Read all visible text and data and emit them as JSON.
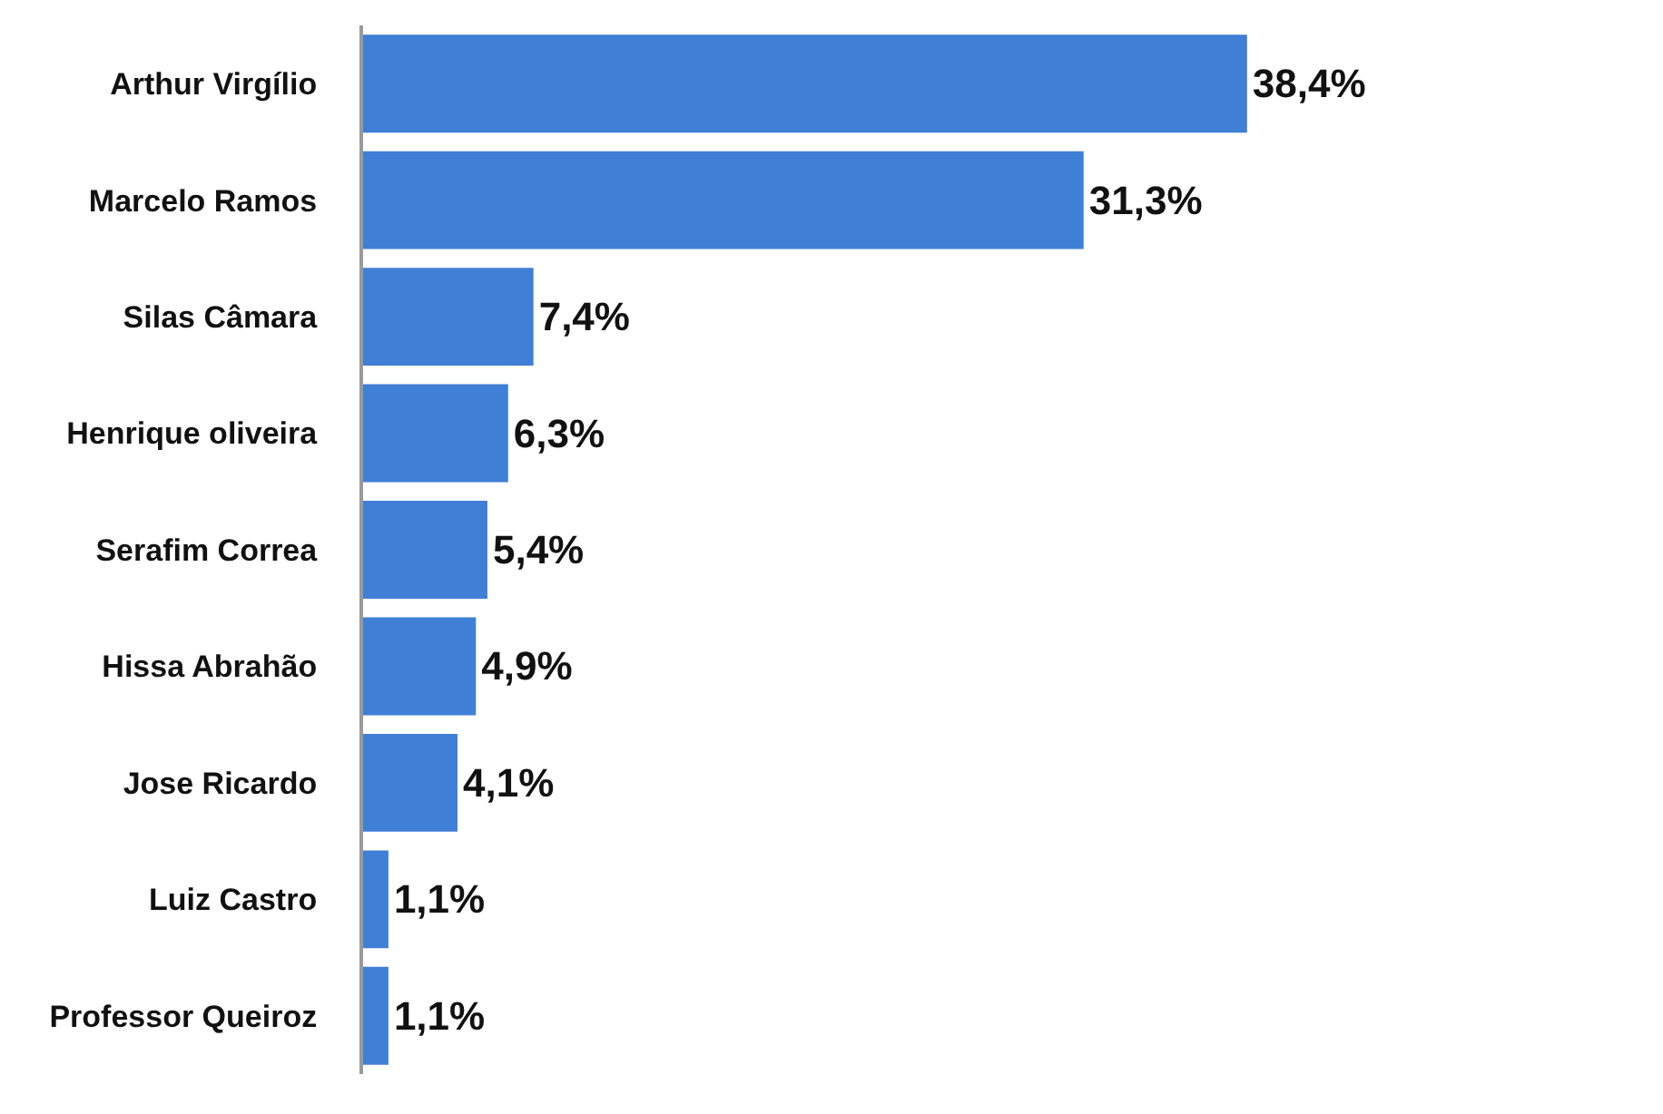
{
  "chart_data": {
    "type": "bar",
    "orientation": "horizontal",
    "categories": [
      "Arthur Virgílio",
      "Marcelo Ramos",
      "Silas Câmara",
      "Henrique oliveira",
      "Serafim Correa",
      "Hissa Abrahão",
      "Jose Ricardo",
      "Luiz Castro",
      "Professor Queiroz"
    ],
    "values": [
      38.4,
      31.3,
      7.4,
      6.3,
      5.4,
      4.9,
      4.1,
      1.1,
      1.1
    ],
    "value_labels": [
      "38,4%",
      "31,3%",
      "7,4%",
      "6,3%",
      "5,4%",
      "4,9%",
      "4,1%",
      "1,1%",
      "1,1%"
    ],
    "color": "#3f7fd6",
    "tick_labels": "y"
  }
}
